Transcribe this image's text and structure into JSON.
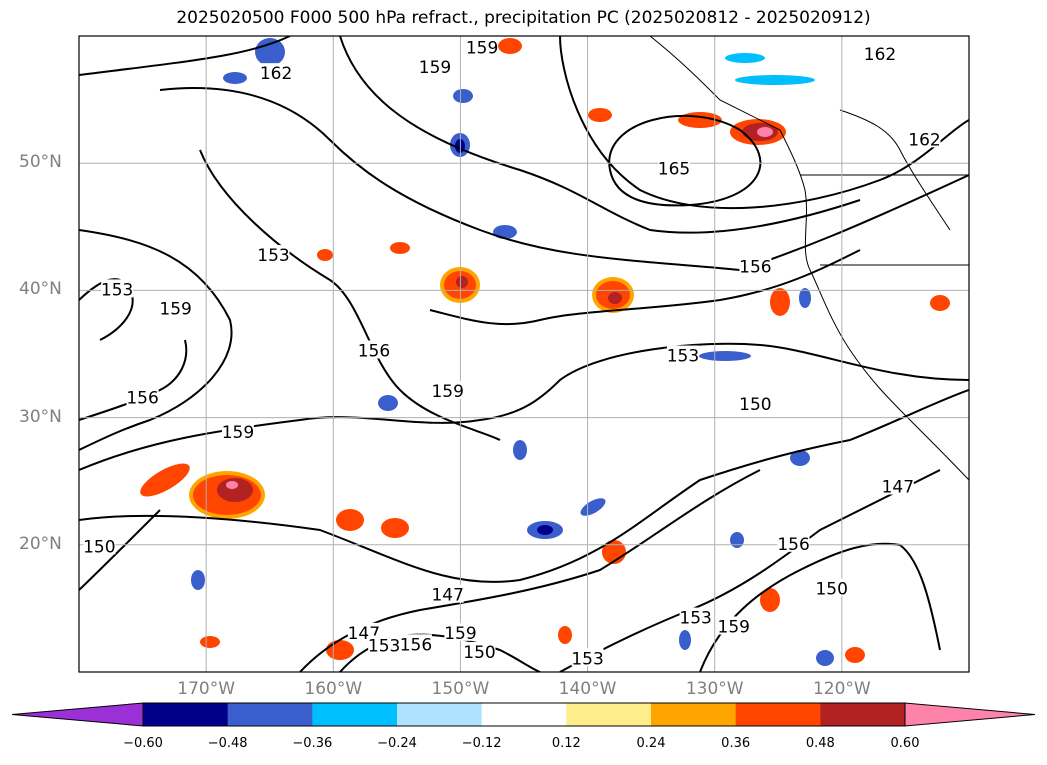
{
  "title": "2025020500 F000 500 hPa refract., precipitation PC (2025020812 - 2025020912)",
  "map": {
    "lon_range": [
      -180,
      -110
    ],
    "lat_range": [
      10,
      60
    ],
    "lat_ticks": [
      {
        "value": 50,
        "label": "50°N"
      },
      {
        "value": 40,
        "label": "40°N"
      },
      {
        "value": 30,
        "label": "30°N"
      },
      {
        "value": 20,
        "label": "20°N"
      }
    ],
    "lon_ticks": [
      {
        "value": -170,
        "label": "170°W"
      },
      {
        "value": -160,
        "label": "160°W"
      },
      {
        "value": -150,
        "label": "150°W"
      },
      {
        "value": -140,
        "label": "140°W"
      },
      {
        "value": -130,
        "label": "130°W"
      },
      {
        "value": -120,
        "label": "120°W"
      }
    ],
    "grid": true,
    "contour_labels": [
      {
        "text": "162",
        "lon": -164.5,
        "lat": 57.0
      },
      {
        "text": "159",
        "lon": -148.3,
        "lat": 59.0
      },
      {
        "text": "159",
        "lon": -152.0,
        "lat": 57.5
      },
      {
        "text": "162",
        "lon": -117.0,
        "lat": 58.5
      },
      {
        "text": "162",
        "lon": -113.5,
        "lat": 51.8
      },
      {
        "text": "165",
        "lon": -133.2,
        "lat": 49.5
      },
      {
        "text": "153",
        "lon": -164.7,
        "lat": 42.7
      },
      {
        "text": "159",
        "lon": -172.4,
        "lat": 38.5
      },
      {
        "text": "153",
        "lon": -177.0,
        "lat": 40.0
      },
      {
        "text": "156",
        "lon": -156.8,
        "lat": 35.2
      },
      {
        "text": "156",
        "lon": -126.8,
        "lat": 41.8
      },
      {
        "text": "153",
        "lon": -132.5,
        "lat": 34.8
      },
      {
        "text": "150",
        "lon": -126.8,
        "lat": 31.0
      },
      {
        "text": "159",
        "lon": -151.0,
        "lat": 32.0
      },
      {
        "text": "159",
        "lon": -167.5,
        "lat": 28.8
      },
      {
        "text": "156",
        "lon": -175.0,
        "lat": 31.5
      },
      {
        "text": "150",
        "lon": -178.4,
        "lat": 19.8
      },
      {
        "text": "147",
        "lon": -151.0,
        "lat": 16.0
      },
      {
        "text": "147",
        "lon": -157.6,
        "lat": 13.0
      },
      {
        "text": "153",
        "lon": -156.0,
        "lat": 12.0
      },
      {
        "text": "156",
        "lon": -153.5,
        "lat": 12.1
      },
      {
        "text": "159",
        "lon": -150.0,
        "lat": 13.0
      },
      {
        "text": "150",
        "lon": -148.5,
        "lat": 11.5
      },
      {
        "text": "153",
        "lon": -140.0,
        "lat": 11.0
      },
      {
        "text": "153",
        "lon": -131.5,
        "lat": 14.2
      },
      {
        "text": "159",
        "lon": -128.5,
        "lat": 13.5
      },
      {
        "text": "156",
        "lon": -123.8,
        "lat": 20.0
      },
      {
        "text": "150",
        "lon": -120.8,
        "lat": 16.5
      },
      {
        "text": "147",
        "lon": -115.6,
        "lat": 24.5
      }
    ]
  },
  "colorbar": {
    "ticks": [
      "−0.60",
      "−0.48",
      "−0.36",
      "−0.24",
      "−0.12",
      "0.12",
      "0.24",
      "0.36",
      "0.48",
      "0.60"
    ],
    "colors": [
      "#9b30d6",
      "#00008b",
      "#3a5fcd",
      "#00bfff",
      "#b0e2ff",
      "#ffffff",
      "#ffec8b",
      "#ffa500",
      "#ff4500",
      "#b22222",
      "#ff82ab"
    ]
  }
}
